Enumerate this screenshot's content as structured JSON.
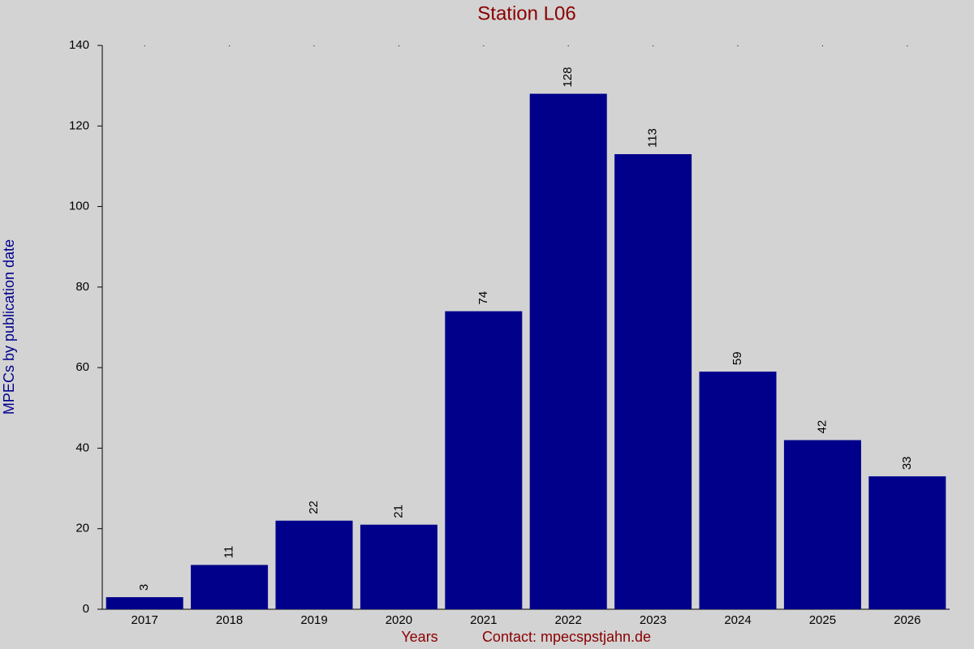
{
  "chart_data": {
    "type": "bar",
    "title": "Station L06",
    "y_label": "MPECs by publication date",
    "x_label": "Years",
    "contact": "Contact: mpecspstjahn.de",
    "categories": [
      "2017",
      "2018",
      "2019",
      "2020",
      "2021",
      "2022",
      "2023",
      "2024",
      "2025",
      "2026"
    ],
    "values": [
      3,
      11,
      22,
      21,
      74,
      128,
      113,
      59,
      42,
      33
    ],
    "color": "#00008b",
    "ylim": [
      0,
      140
    ],
    "yticks": [
      0,
      20,
      40,
      60,
      80,
      100,
      120,
      140
    ],
    "grid": false
  }
}
